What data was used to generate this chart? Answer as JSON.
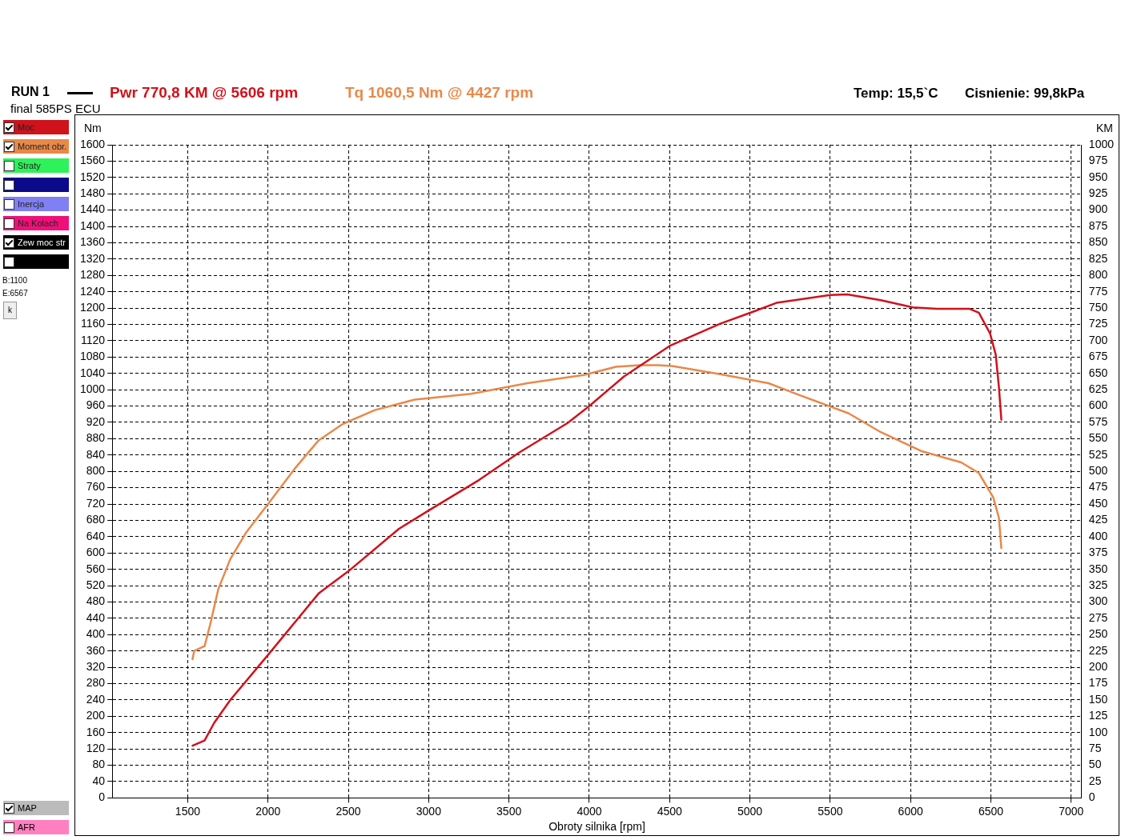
{
  "chart_data": {
    "type": "line",
    "title": "RUN 1",
    "subtitle": "final 585PS ECU",
    "xlabel": "Obroty silnika [rpm]",
    "ylabel": "Nm",
    "y2label": "KM",
    "annotations": [
      "Pwr  770,8 KM @ 5606 rpm",
      "Tq 1060,5 Nm @ 4427 rpm",
      "Temp: 15,5`C",
      "Cisnienie: 99,8kPa",
      "Straty",
      "Inercja",
      "Na Kolach",
      "Zew moc str",
      "B:1100",
      "E:6567",
      "k",
      "MAP",
      "AFR"
    ],
    "series": [
      {
        "name": "Moc",
        "color": "#d0121b",
        "axis": "y2",
        "x": [
          1530,
          1605,
          1665,
          1765,
          2000,
          2315,
          2500,
          2815,
          3000,
          3315,
          3565,
          3865,
          4000,
          4215,
          4500,
          4815,
          5015,
          5165,
          5500,
          5606,
          5815,
          6015,
          6165,
          6365,
          6425,
          6495,
          6530,
          6550,
          6565
        ],
        "values": [
          80,
          88,
          115,
          150,
          219,
          313,
          347,
          412,
          440,
          487,
          529,
          574,
          600,
          645,
          692,
          726,
          744,
          758,
          770,
          771,
          762,
          751,
          749,
          749,
          743,
          711,
          679,
          629,
          579
        ]
      },
      {
        "name": "Moment obr.",
        "color": "#e8894a",
        "axis": "y",
        "x": [
          1530,
          1540,
          1605,
          1640,
          1690,
          1765,
          1865,
          2000,
          2165,
          2315,
          2465,
          2665,
          2915,
          3265,
          3615,
          3965,
          4165,
          4315,
          4427,
          4515,
          4815,
          5115,
          5315,
          5615,
          5815,
          6065,
          6315,
          6425,
          6515,
          6550,
          6565
        ],
        "values": [
          340,
          360,
          372,
          425,
          511,
          585,
          651,
          720,
          806,
          876,
          916,
          950,
          976,
          990,
          1016,
          1036,
          1056,
          1060,
          1060,
          1058,
          1038,
          1016,
          986,
          942,
          896,
          850,
          822,
          796,
          736,
          686,
          612
        ]
      }
    ],
    "xlim": [
      1030,
      7065
    ],
    "xticks": [
      1500,
      2000,
      2500,
      3000,
      3500,
      4000,
      4500,
      5000,
      5500,
      6000,
      6500,
      7000
    ],
    "ylim": [
      0,
      1600
    ],
    "yticks": [
      0,
      40,
      80,
      120,
      160,
      200,
      240,
      280,
      320,
      360,
      400,
      440,
      480,
      520,
      560,
      600,
      640,
      680,
      720,
      760,
      800,
      840,
      880,
      920,
      960,
      1000,
      1040,
      1080,
      1120,
      1160,
      1200,
      1240,
      1280,
      1320,
      1360,
      1400,
      1440,
      1480,
      1520,
      1560,
      1600
    ],
    "y2lim": [
      0,
      1000
    ],
    "y2ticks": [
      0,
      25,
      50,
      75,
      100,
      125,
      150,
      175,
      200,
      225,
      250,
      275,
      300,
      325,
      350,
      375,
      400,
      425,
      450,
      475,
      500,
      525,
      550,
      575,
      600,
      625,
      650,
      675,
      700,
      725,
      750,
      775,
      800,
      825,
      850,
      875,
      900,
      925,
      950,
      975,
      1000
    ],
    "grid": true,
    "legend": "left",
    "marker": "none",
    "line_style": "solid"
  }
}
